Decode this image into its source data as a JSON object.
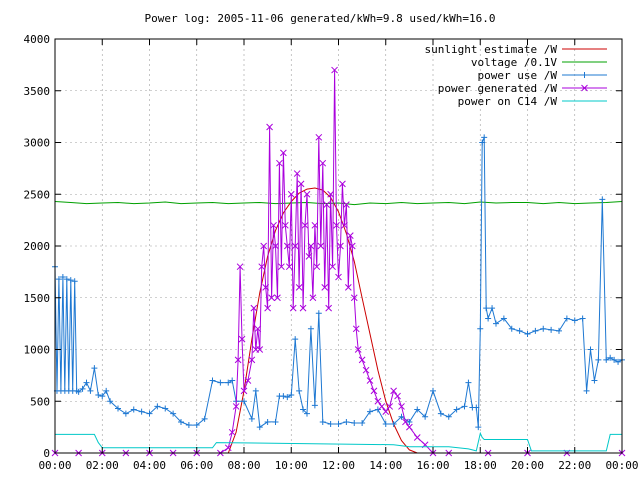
{
  "chart_data": {
    "type": "line",
    "title": "Power log: 2005-11-06 generated/kWh=9.8 used/kWh=16.0",
    "xlabel": "",
    "ylabel": "",
    "xlim": [
      0,
      1440
    ],
    "ylim": [
      0,
      4000
    ],
    "grid": true,
    "legend_position": "top-right",
    "x_ticks": [
      {
        "value": 0,
        "label": "00:00"
      },
      {
        "value": 120,
        "label": "02:00"
      },
      {
        "value": 240,
        "label": "04:00"
      },
      {
        "value": 360,
        "label": "06:00"
      },
      {
        "value": 480,
        "label": "08:00"
      },
      {
        "value": 600,
        "label": "10:00"
      },
      {
        "value": 720,
        "label": "12:00"
      },
      {
        "value": 840,
        "label": "14:00"
      },
      {
        "value": 960,
        "label": "16:00"
      },
      {
        "value": 1080,
        "label": "18:00"
      },
      {
        "value": 1200,
        "label": "20:00"
      },
      {
        "value": 1320,
        "label": "22:00"
      },
      {
        "value": 1440,
        "label": "00:00"
      }
    ],
    "y_ticks": [
      {
        "value": 0,
        "label": "0"
      },
      {
        "value": 500,
        "label": "500"
      },
      {
        "value": 1000,
        "label": "1000"
      },
      {
        "value": 1500,
        "label": "1500"
      },
      {
        "value": 2000,
        "label": "2000"
      },
      {
        "value": 2500,
        "label": "2500"
      },
      {
        "value": 3000,
        "label": "3000"
      },
      {
        "value": 3500,
        "label": "3500"
      },
      {
        "value": 4000,
        "label": "4000"
      }
    ],
    "series": [
      {
        "name": "sunlight estimate /W",
        "color": "#cc0000",
        "marker": "none",
        "x": [
          440,
          460,
          480,
          500,
          520,
          540,
          560,
          580,
          600,
          620,
          640,
          660,
          680,
          700,
          720,
          740,
          760,
          780,
          800,
          820,
          840,
          860,
          880,
          900,
          920
        ],
        "y": [
          0,
          200,
          600,
          1100,
          1550,
          1900,
          2150,
          2320,
          2430,
          2510,
          2550,
          2560,
          2540,
          2470,
          2330,
          2120,
          1850,
          1500,
          1150,
          800,
          500,
          280,
          120,
          30,
          0
        ]
      },
      {
        "name": "voltage /0.1V",
        "color": "#00a000",
        "marker": "none",
        "x": [
          0,
          40,
          80,
          120,
          160,
          200,
          240,
          280,
          320,
          360,
          400,
          440,
          480,
          520,
          560,
          600,
          640,
          680,
          720,
          760,
          800,
          840,
          880,
          920,
          960,
          1000,
          1040,
          1080,
          1120,
          1160,
          1200,
          1240,
          1280,
          1320,
          1360,
          1400,
          1440
        ],
        "y": [
          2430,
          2420,
          2410,
          2415,
          2420,
          2410,
          2415,
          2425,
          2410,
          2415,
          2420,
          2410,
          2415,
          2420,
          2410,
          2415,
          2420,
          2410,
          2415,
          2400,
          2415,
          2410,
          2420,
          2410,
          2415,
          2420,
          2410,
          2425,
          2415,
          2420,
          2420,
          2410,
          2420,
          2410,
          2415,
          2420,
          2430
        ]
      },
      {
        "name": "power use /W",
        "color": "#1e78d2",
        "marker": "plus",
        "x": [
          0,
          5,
          10,
          15,
          20,
          25,
          30,
          35,
          40,
          45,
          50,
          55,
          60,
          70,
          80,
          90,
          100,
          110,
          120,
          130,
          140,
          160,
          180,
          200,
          220,
          240,
          260,
          280,
          300,
          320,
          340,
          360,
          380,
          400,
          420,
          440,
          450,
          460,
          480,
          500,
          510,
          520,
          540,
          560,
          570,
          580,
          590,
          600,
          610,
          620,
          630,
          640,
          650,
          660,
          670,
          680,
          700,
          720,
          740,
          760,
          780,
          800,
          820,
          840,
          860,
          880,
          900,
          920,
          940,
          960,
          980,
          1000,
          1020,
          1040,
          1050,
          1060,
          1070,
          1075,
          1080,
          1085,
          1090,
          1095,
          1100,
          1110,
          1120,
          1140,
          1160,
          1180,
          1200,
          1220,
          1240,
          1260,
          1280,
          1300,
          1320,
          1340,
          1350,
          1360,
          1370,
          1380,
          1390,
          1400,
          1410,
          1420,
          1430,
          1440
        ],
        "y": [
          1800,
          600,
          1680,
          600,
          1700,
          600,
          1680,
          600,
          1670,
          600,
          1660,
          600,
          590,
          620,
          680,
          600,
          820,
          560,
          550,
          600,
          500,
          430,
          380,
          420,
          400,
          380,
          450,
          430,
          380,
          300,
          270,
          270,
          330,
          700,
          680,
          680,
          700,
          500,
          500,
          330,
          600,
          250,
          300,
          300,
          550,
          550,
          540,
          560,
          1100,
          600,
          420,
          380,
          1200,
          460,
          1350,
          300,
          280,
          280,
          300,
          290,
          290,
          400,
          420,
          280,
          280,
          350,
          300,
          420,
          350,
          600,
          380,
          350,
          420,
          450,
          680,
          440,
          440,
          250,
          1200,
          3000,
          3050,
          1400,
          1300,
          1400,
          1250,
          1300,
          1200,
          1180,
          1150,
          1180,
          1200,
          1190,
          1180,
          1300,
          1280,
          1300,
          600,
          1000,
          700,
          900,
          2450,
          900,
          920,
          900,
          880,
          900
        ]
      },
      {
        "name": "power generated /W",
        "color": "#aa00dd",
        "marker": "cross",
        "x": [
          0,
          60,
          120,
          180,
          240,
          300,
          360,
          420,
          440,
          450,
          460,
          465,
          470,
          475,
          480,
          490,
          500,
          505,
          510,
          515,
          520,
          525,
          530,
          535,
          540,
          545,
          550,
          555,
          560,
          565,
          570,
          575,
          580,
          585,
          590,
          595,
          600,
          605,
          610,
          615,
          620,
          625,
          630,
          635,
          640,
          645,
          650,
          655,
          660,
          665,
          670,
          675,
          680,
          685,
          690,
          695,
          700,
          705,
          710,
          715,
          720,
          725,
          730,
          735,
          740,
          745,
          750,
          755,
          760,
          765,
          770,
          780,
          790,
          800,
          810,
          820,
          830,
          840,
          850,
          860,
          870,
          880,
          890,
          900,
          920,
          940,
          960,
          1000,
          1100,
          1200,
          1300,
          1440
        ],
        "y": [
          0,
          0,
          0,
          0,
          0,
          0,
          0,
          0,
          50,
          200,
          450,
          900,
          1800,
          1100,
          600,
          700,
          900,
          1400,
          1000,
          1200,
          1000,
          1800,
          2000,
          1600,
          1400,
          3150,
          1500,
          2200,
          2000,
          1500,
          2800,
          1800,
          2900,
          2200,
          2000,
          1800,
          2500,
          1400,
          2000,
          2700,
          1600,
          2600,
          1400,
          2200,
          2500,
          1900,
          2000,
          1500,
          2200,
          1800,
          3050,
          2000,
          2800,
          1600,
          2400,
          1400,
          2500,
          1800,
          3700,
          2200,
          1700,
          2000,
          2600,
          2200,
          2400,
          1600,
          2100,
          2000,
          1500,
          1200,
          1000,
          900,
          800,
          700,
          600,
          500,
          450,
          400,
          450,
          600,
          550,
          450,
          300,
          250,
          150,
          80,
          0,
          0,
          0,
          0,
          0,
          0
        ]
      },
      {
        "name": "power on C14 /W",
        "color": "#00c8c8",
        "marker": "none",
        "x": [
          0,
          100,
          110,
          120,
          400,
          410,
          860,
          900,
          1000,
          1050,
          1060,
          1070,
          1080,
          1085,
          1090,
          1200,
          1210,
          1400,
          1410,
          1440
        ],
        "y": [
          180,
          180,
          100,
          50,
          50,
          100,
          80,
          60,
          60,
          40,
          30,
          20,
          190,
          150,
          130,
          130,
          20,
          20,
          180,
          180
        ]
      }
    ]
  }
}
